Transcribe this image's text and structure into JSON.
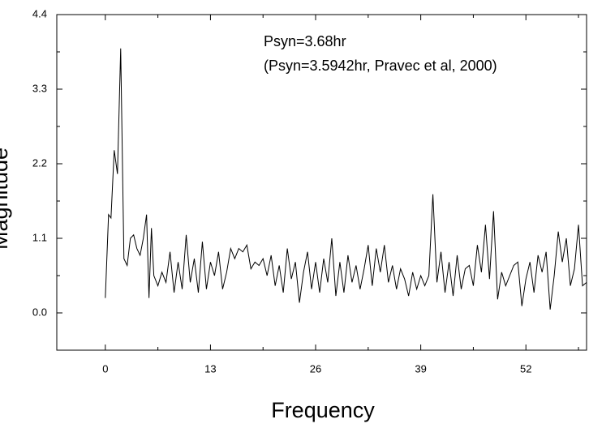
{
  "chart_data": {
    "type": "line",
    "xlabel": "Frequency",
    "ylabel": "Magnitude",
    "annotations": [
      "Psyn=3.68hr",
      "(Psyn=3.5942hr, Pravec et al,  2000)"
    ],
    "xlim": [
      -6,
      59.5
    ],
    "ylim": [
      -0.55,
      4.4
    ],
    "xticks": [
      0,
      13,
      26,
      39,
      52
    ],
    "yticks": [
      {
        "value": 0,
        "label": "0.0"
      },
      1.1,
      2.2,
      3.3,
      4.4
    ],
    "grid": false,
    "series": [
      {
        "color": "#000000",
        "x": [
          0,
          0.4,
          0.7,
          1.1,
          1.5,
          1.9,
          2.3,
          2.7,
          3.1,
          3.5,
          3.9,
          4.3,
          4.7,
          5.1,
          5.4,
          5.7,
          6,
          6.5,
          7,
          7.5,
          8,
          8.5,
          9,
          9.5,
          10,
          10.5,
          11,
          11.5,
          12,
          12.5,
          13,
          13.5,
          14,
          14.5,
          15,
          15.5,
          16,
          16.5,
          17,
          17.5,
          18,
          18.5,
          19,
          19.5,
          20,
          20.5,
          21,
          21.5,
          22,
          22.5,
          23,
          23.5,
          24,
          24.5,
          25,
          25.5,
          26,
          26.5,
          27,
          27.5,
          28,
          28.5,
          29,
          29.5,
          30,
          30.5,
          31,
          31.5,
          32,
          32.5,
          33,
          33.5,
          34,
          34.5,
          35,
          35.5,
          36,
          36.5,
          37,
          37.5,
          38,
          38.5,
          39,
          39.5,
          40,
          40.5,
          41,
          41.5,
          42,
          42.5,
          43,
          43.5,
          44,
          44.5,
          45,
          45.5,
          46,
          46.5,
          47,
          47.5,
          48,
          48.5,
          49,
          49.5,
          50,
          50.5,
          51,
          51.5,
          52,
          52.5,
          53,
          53.5,
          54,
          54.5,
          55,
          55.5,
          56,
          56.5,
          57,
          57.5,
          58,
          58.5,
          59,
          59.5
        ],
        "values": [
          0.22,
          1.45,
          1.4,
          2.4,
          2.05,
          3.9,
          0.8,
          0.7,
          1.1,
          1.15,
          0.95,
          0.85,
          1.1,
          1.45,
          0.22,
          1.25,
          0.55,
          0.4,
          0.6,
          0.45,
          0.9,
          0.3,
          0.75,
          0.35,
          1.15,
          0.45,
          0.8,
          0.3,
          1.05,
          0.35,
          0.75,
          0.55,
          0.9,
          0.35,
          0.6,
          0.95,
          0.8,
          0.95,
          0.9,
          1.0,
          0.65,
          0.75,
          0.7,
          0.8,
          0.55,
          0.85,
          0.4,
          0.7,
          0.3,
          0.95,
          0.5,
          0.75,
          0.15,
          0.6,
          0.9,
          0.35,
          0.75,
          0.3,
          0.8,
          0.45,
          1.1,
          0.25,
          0.75,
          0.3,
          0.85,
          0.45,
          0.7,
          0.35,
          0.65,
          1.0,
          0.4,
          0.95,
          0.6,
          1.0,
          0.45,
          0.7,
          0.35,
          0.65,
          0.5,
          0.25,
          0.6,
          0.35,
          0.55,
          0.4,
          0.55,
          1.75,
          0.45,
          0.9,
          0.3,
          0.75,
          0.25,
          0.85,
          0.35,
          0.65,
          0.7,
          0.4,
          1.0,
          0.6,
          1.3,
          0.5,
          1.5,
          0.2,
          0.6,
          0.4,
          0.55,
          0.7,
          0.75,
          0.1,
          0.5,
          0.75,
          0.3,
          0.85,
          0.6,
          0.9,
          0.05,
          0.55,
          1.2,
          0.75,
          1.1,
          0.4,
          0.65,
          1.3,
          0.4,
          0.45
        ]
      }
    ]
  }
}
